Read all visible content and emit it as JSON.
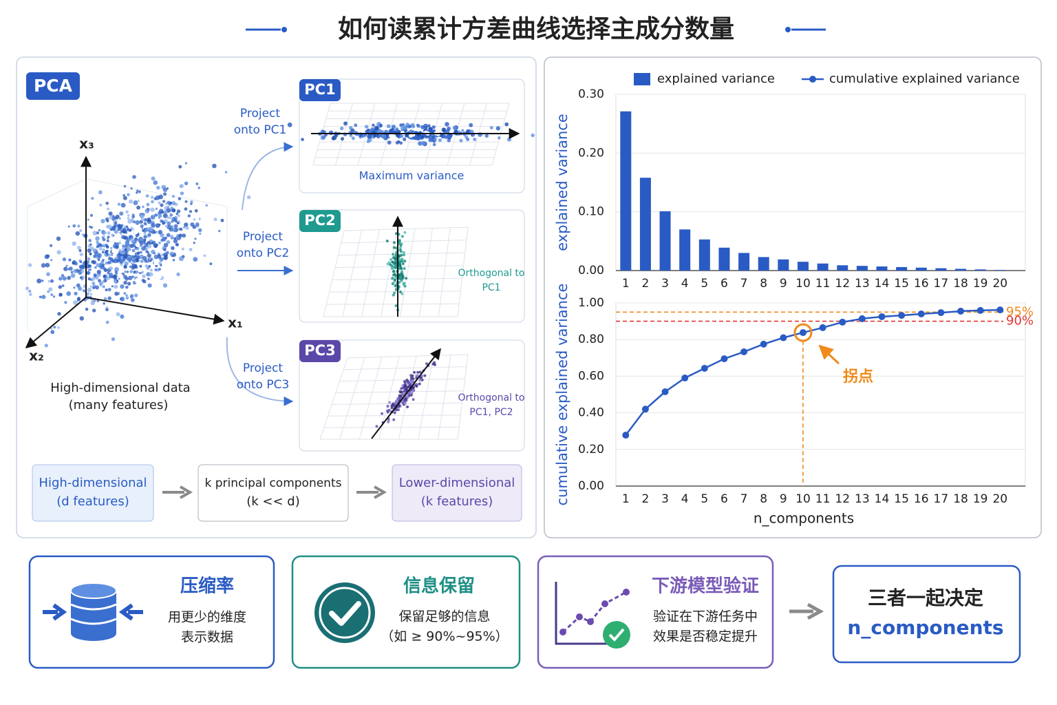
{
  "title": "如何读累计方差曲线选择主成分数量",
  "pca_panel": {
    "badge": "PCA",
    "axes": {
      "x1": "x₁",
      "x2": "x₂",
      "x3": "x₃"
    },
    "data_caption": [
      "High-dimensional data",
      "(many features)"
    ],
    "projections": [
      {
        "badge": "PC1",
        "label": [
          "Project",
          "onto PC1"
        ],
        "caption": [
          "Maximum variance"
        ]
      },
      {
        "badge": "PC2",
        "label": [
          "Project",
          "onto PC2"
        ],
        "caption": [
          "Orthogonal to",
          "PC1"
        ]
      },
      {
        "badge": "PC3",
        "label": [
          "Project",
          "onto PC3"
        ],
        "caption": [
          "Orthogonal to",
          "PC1, PC2"
        ]
      }
    ],
    "flow": [
      [
        "High-dimensional",
        "(d features)"
      ],
      [
        "k principal components",
        "(k << d)"
      ],
      [
        "Lower-dimensional",
        "(k features)"
      ]
    ]
  },
  "chart_data": [
    {
      "type": "bar",
      "ylabel": "explained variance",
      "categories": [
        1,
        2,
        3,
        4,
        5,
        6,
        7,
        8,
        9,
        10,
        11,
        12,
        13,
        14,
        15,
        16,
        17,
        18,
        19,
        20
      ],
      "series": [
        {
          "name": "explained variance",
          "color": "#2a5bc4",
          "values": [
            0.271,
            0.158,
            0.101,
            0.07,
            0.053,
            0.039,
            0.03,
            0.023,
            0.019,
            0.015,
            0.012,
            0.009,
            0.008,
            0.007,
            0.006,
            0.005,
            0.004,
            0.003,
            0.002,
            0.001
          ]
        }
      ],
      "ylim": [
        0,
        0.3
      ],
      "yticks": [
        {
          "value": 0,
          "label": "0.00"
        },
        {
          "value": 0.1,
          "label": "0.10"
        },
        {
          "value": 0.2,
          "label": "0.20"
        },
        {
          "value": 0.3,
          "label": "0.30"
        }
      ],
      "grid": true,
      "legend": "top"
    },
    {
      "type": "line",
      "ylabel": "cumulative explained variance",
      "xlabel": "n_components",
      "categories": [
        1,
        2,
        3,
        4,
        5,
        6,
        7,
        8,
        9,
        10,
        11,
        12,
        13,
        14,
        15,
        16,
        17,
        18,
        19,
        20
      ],
      "series": [
        {
          "name": "cumulative explained variance",
          "color": "#2a5bc4",
          "values": [
            0.278,
            0.42,
            0.515,
            0.59,
            0.643,
            0.695,
            0.733,
            0.775,
            0.81,
            0.838,
            0.865,
            0.895,
            0.914,
            0.925,
            0.932,
            0.94,
            0.947,
            0.955,
            0.959,
            0.962
          ]
        }
      ],
      "ylim": [
        0,
        1
      ],
      "yticks": [
        {
          "value": 0,
          "label": "0.00"
        },
        {
          "value": 0.2,
          "label": "0.20"
        },
        {
          "value": 0.4,
          "label": "0.40"
        },
        {
          "value": 0.6,
          "label": "0.60"
        },
        {
          "value": 0.8,
          "label": "0.80"
        },
        {
          "value": 1,
          "label": "1.00"
        }
      ],
      "grid": true,
      "legend": "top",
      "reference_lines": [
        {
          "value": 0.95,
          "label": "95%",
          "color": "#f08a1c"
        },
        {
          "value": 0.9,
          "label": "90%",
          "color": "#e03535"
        }
      ],
      "annotation": {
        "label": "拐点",
        "x": 10,
        "color": "#f08a1c"
      }
    }
  ],
  "cards": [
    {
      "title": "压缩率",
      "lines": [
        "用更少的维度",
        "表示数据"
      ]
    },
    {
      "title": "信息保留",
      "lines": [
        "保留足够的信息",
        "（如 ≥ 90%~95%）"
      ]
    },
    {
      "title": "下游模型验证",
      "lines": [
        "验证在下游任务中",
        "效果是否稳定提升"
      ]
    }
  ],
  "conclusion": [
    "三者一起决定",
    "n_components"
  ]
}
